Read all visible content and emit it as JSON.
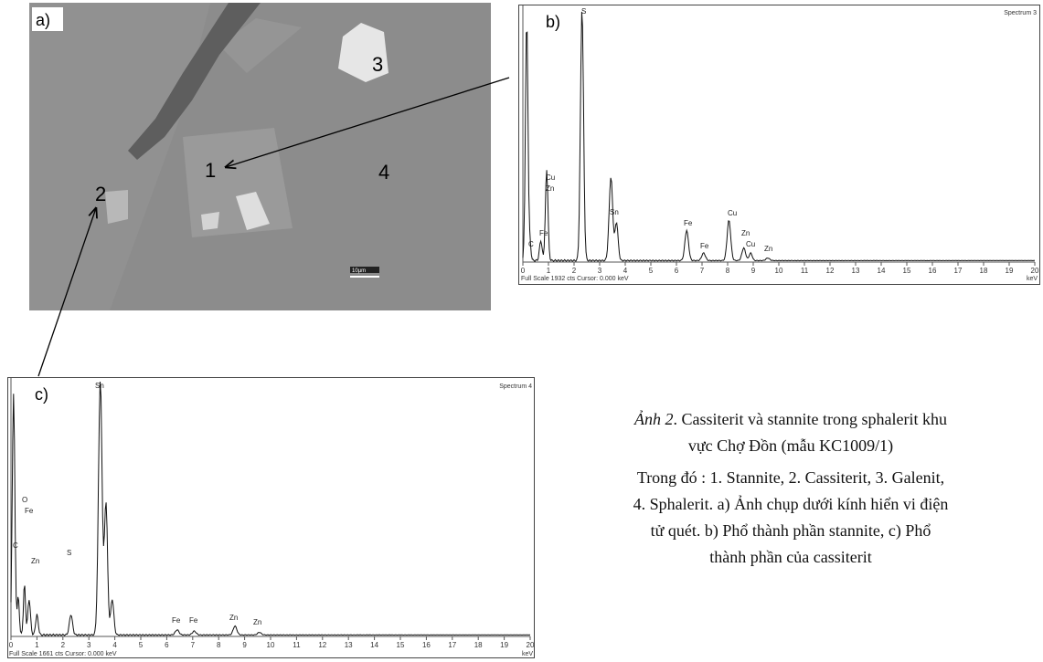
{
  "sem": {
    "label": "a)",
    "points": [
      "3",
      "1",
      "4",
      "2"
    ],
    "scale_bar": "10µm"
  },
  "spectra": [
    {
      "label": "b)",
      "name": "Spectrum 3",
      "peaks": [
        "S",
        "Cu",
        "Zn",
        "Fe",
        "C",
        "Sn",
        "Fe",
        "Fe",
        "Cu",
        "Zn",
        "Cu",
        "Zn"
      ],
      "x_ticks": [
        0,
        1,
        2,
        3,
        4,
        5,
        6,
        7,
        8,
        9,
        10,
        11,
        12,
        13,
        14,
        15,
        16,
        17,
        18,
        19,
        20
      ],
      "unit": "keV",
      "footer": "Full Scale 1932 cts  Cursor: 0.000 keV"
    },
    {
      "label": "c)",
      "name": "Spectrum 4",
      "peaks": [
        "Sn",
        "O",
        "Fe",
        "C",
        "Zn",
        "S",
        "Fe",
        "Fe",
        "Zn",
        "Zn"
      ],
      "x_ticks": [
        0,
        1,
        2,
        3,
        4,
        5,
        6,
        7,
        8,
        9,
        10,
        11,
        12,
        13,
        14,
        15,
        16,
        17,
        18,
        19,
        20
      ],
      "unit": "keV",
      "footer": "Full Scale 1661 cts  Cursor: 0.000 keV"
    }
  ],
  "caption": {
    "figure": "Ảnh 2",
    "title": ". Cassiterit và stannite trong sphalerit khu vực Chợ Đồn (mẫu KC1009/1)",
    "body": "Trong đó : 1. Stannite, 2. Cassiterit, 3. Galenit, 4. Sphalerit. a) Ảnh chụp dưới kính hiển vi điện tử quét. b) Phổ thành phần stannite, c) Phổ thành phần của cassiterit"
  }
}
